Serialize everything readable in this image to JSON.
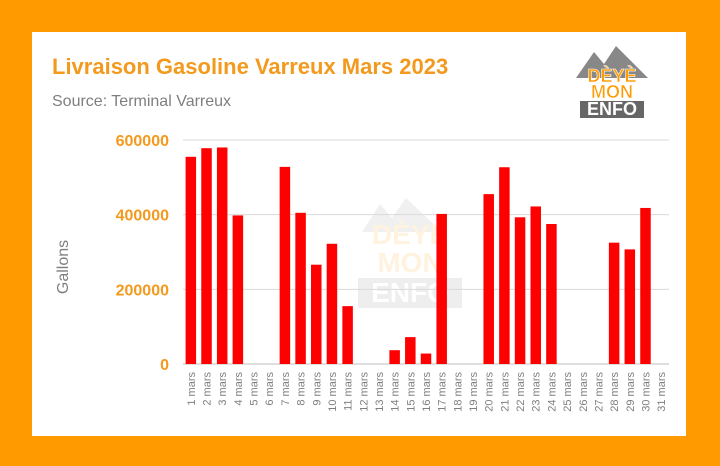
{
  "brand": {
    "line1": "DÈYÈ",
    "line2": "MON",
    "line3": "ENFO",
    "mountain_color": "#888888",
    "accent": "#ff9a00"
  },
  "colors": {
    "bars": "#ff0000",
    "title": "#f39a1e",
    "tick_labels_y": "#f39a1e",
    "text_gray": "#7f7f7f"
  },
  "chart_data": {
    "type": "bar",
    "title": "Livraison Gasoline Varreux Mars 2023",
    "subtitle": "Source: Terminal Varreux",
    "xlabel": "",
    "ylabel": "Gallons",
    "ylim": [
      0,
      600000
    ],
    "yticks": [
      "0",
      "200000",
      "400000",
      "600000"
    ],
    "grid": true,
    "legend": "none",
    "categories": [
      "1 mars",
      "2 mars",
      "3 mars",
      "4 mars",
      "5 mars",
      "6 mars",
      "7 mars",
      "8 mars",
      "9 mars",
      "10 mars",
      "11 mars",
      "12 mars",
      "13 mars",
      "14 mars",
      "15 mars",
      "16 mars",
      "17 mars",
      "18 mars",
      "19 mars",
      "20 mars",
      "21 mars",
      "22 mars",
      "23 mars",
      "24 mars",
      "25 mars",
      "26 mars",
      "27 mars",
      "28 mars",
      "29 mars",
      "30 mars",
      "31 mars"
    ],
    "values": [
      555000,
      578000,
      580000,
      398000,
      0,
      0,
      528000,
      405000,
      266000,
      322000,
      155000,
      0,
      0,
      37000,
      72000,
      28000,
      402000,
      0,
      0,
      455000,
      527000,
      393000,
      422000,
      375000,
      0,
      0,
      0,
      325000,
      307000,
      418000,
      0
    ]
  }
}
